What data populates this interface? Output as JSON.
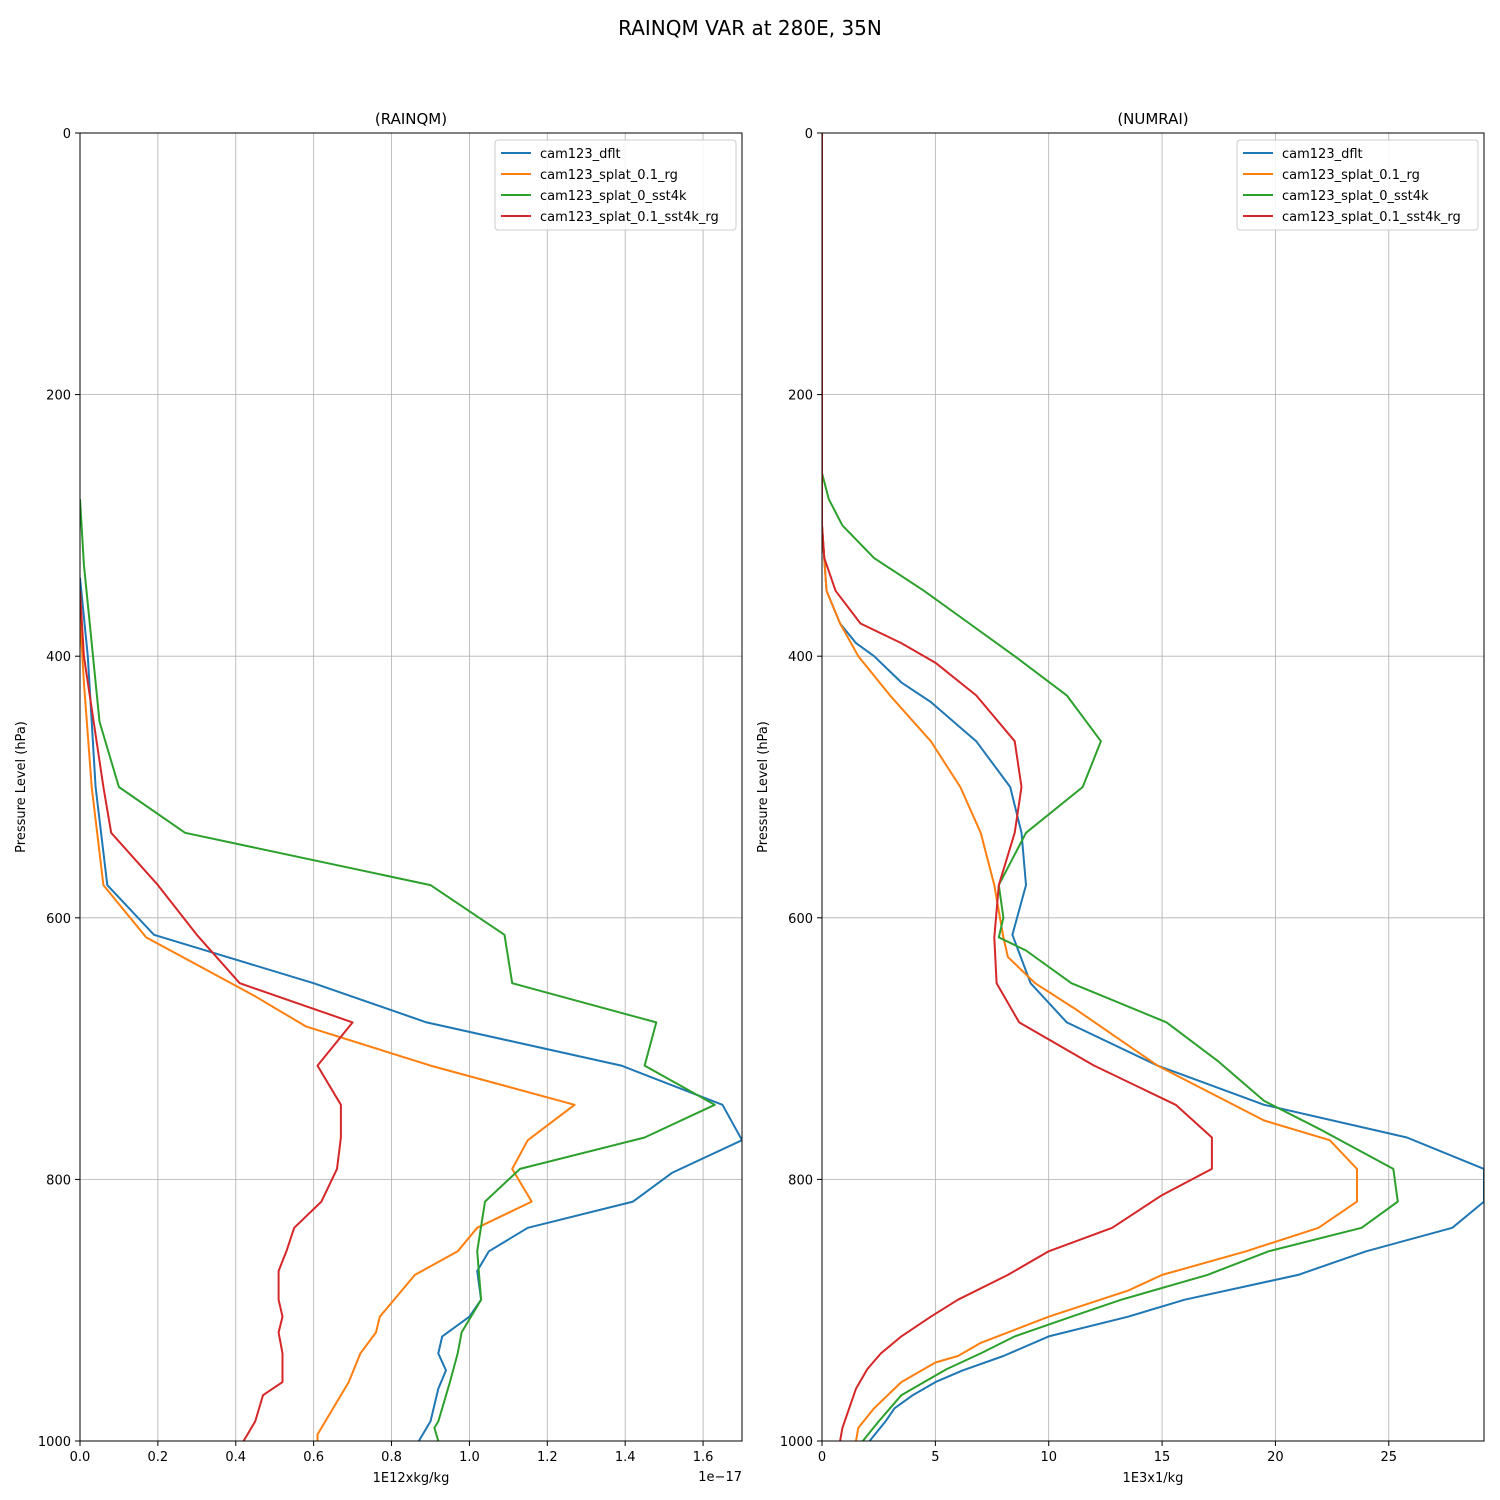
{
  "suptitle": "RAINQM VAR at 280E, 35N",
  "colors": {
    "cam123_dflt": "#1f77b4",
    "cam123_splat_0.1_rg": "#ff7f0e",
    "cam123_splat_0_sst4k": "#2ca02c",
    "cam123_splat_0.1_sst4k_rg": "#d62728",
    "grid": "#b0b0b0"
  },
  "chart_data": [
    {
      "type": "line",
      "title": "(RAINQM)",
      "xlabel": "1E12xkg/kg",
      "ylabel": "Pressure Level (hPa)",
      "x_offset_label": "1e−17",
      "xlim": [
        0,
        1.7
      ],
      "ylim": [
        1000,
        0
      ],
      "xticks": [
        0.0,
        0.2,
        0.4,
        0.6,
        0.8,
        1.0,
        1.2,
        1.4,
        1.6
      ],
      "xtick_labels": [
        "0.0",
        "0.2",
        "0.4",
        "0.6",
        "0.8",
        "1.0",
        "1.2",
        "1.4",
        "1.6"
      ],
      "yticks": [
        0,
        200,
        400,
        600,
        800,
        1000
      ],
      "ytick_labels": [
        "0",
        "200",
        "400",
        "600",
        "800",
        "1000"
      ],
      "grid": true,
      "legend_position": "top-right",
      "series": [
        {
          "name": "cam123_dflt",
          "points": [
            [
              0,
              340
            ],
            [
              0.02,
              400
            ],
            [
              0.04,
              500
            ],
            [
              0.07,
              575
            ],
            [
              0.19,
              613
            ],
            [
              0.6,
              650
            ],
            [
              0.89,
              680
            ],
            [
              1.39,
              713
            ],
            [
              1.65,
              743
            ],
            [
              1.7,
              770
            ],
            [
              1.52,
              795
            ],
            [
              1.42,
              817
            ],
            [
              1.15,
              837
            ],
            [
              1.05,
              855
            ],
            [
              1.02,
              870
            ],
            [
              1.03,
              892
            ],
            [
              1.0,
              905
            ],
            [
              0.93,
              920
            ],
            [
              0.92,
              933
            ],
            [
              0.94,
              946
            ],
            [
              0.92,
              960
            ],
            [
              0.9,
              985
            ],
            [
              0.87,
              1000
            ]
          ]
        },
        {
          "name": "cam123_splat_0.1_rg",
          "points": [
            [
              0,
              370
            ],
            [
              0.01,
              420
            ],
            [
              0.03,
              500
            ],
            [
              0.06,
              575
            ],
            [
              0.17,
              615
            ],
            [
              0.45,
              660
            ],
            [
              0.58,
              683
            ],
            [
              0.9,
              713
            ],
            [
              1.27,
              743
            ],
            [
              1.15,
              770
            ],
            [
              1.11,
              792
            ],
            [
              1.16,
              817
            ],
            [
              1.02,
              837
            ],
            [
              0.97,
              855
            ],
            [
              0.86,
              873
            ],
            [
              0.77,
              905
            ],
            [
              0.76,
              917
            ],
            [
              0.72,
              933
            ],
            [
              0.69,
              955
            ],
            [
              0.63,
              985
            ],
            [
              0.61,
              995
            ],
            [
              0.61,
              1000
            ]
          ]
        },
        {
          "name": "cam123_splat_0_sst4k",
          "points": [
            [
              0,
              280
            ],
            [
              0.01,
              330
            ],
            [
              0.05,
              450
            ],
            [
              0.1,
              500
            ],
            [
              0.27,
              535
            ],
            [
              0.9,
              575
            ],
            [
              1.09,
              613
            ],
            [
              1.11,
              650
            ],
            [
              1.48,
              680
            ],
            [
              1.45,
              713
            ],
            [
              1.63,
              743
            ],
            [
              1.45,
              768
            ],
            [
              1.13,
              792
            ],
            [
              1.04,
              817
            ],
            [
              1.02,
              855
            ],
            [
              1.03,
              892
            ],
            [
              0.98,
              917
            ],
            [
              0.97,
              933
            ],
            [
              0.95,
              955
            ],
            [
              0.93,
              975
            ],
            [
              0.92,
              985
            ],
            [
              0.91,
              990
            ],
            [
              0.92,
              1000
            ]
          ]
        },
        {
          "name": "cam123_splat_0.1_sst4k_rg",
          "points": [
            [
              0,
              350
            ],
            [
              0.01,
              400
            ],
            [
              0.06,
              500
            ],
            [
              0.08,
              535
            ],
            [
              0.2,
              575
            ],
            [
              0.3,
              613
            ],
            [
              0.41,
              650
            ],
            [
              0.7,
              680
            ],
            [
              0.61,
              713
            ],
            [
              0.67,
              743
            ],
            [
              0.67,
              768
            ],
            [
              0.66,
              792
            ],
            [
              0.62,
              817
            ],
            [
              0.55,
              837
            ],
            [
              0.53,
              855
            ],
            [
              0.51,
              870
            ],
            [
              0.51,
              892
            ],
            [
              0.52,
              905
            ],
            [
              0.51,
              917
            ],
            [
              0.52,
              933
            ],
            [
              0.52,
              955
            ],
            [
              0.47,
              965
            ],
            [
              0.45,
              985
            ],
            [
              0.42,
              1000
            ]
          ]
        }
      ]
    },
    {
      "type": "line",
      "title": "(NUMRAI)",
      "xlabel": "1E3x1/kg",
      "ylabel": "Pressure Level (hPa)",
      "xlim": [
        0,
        29.2
      ],
      "ylim": [
        1000,
        0
      ],
      "xticks": [
        0,
        5,
        10,
        15,
        20,
        25
      ],
      "xtick_labels": [
        "0",
        "5",
        "10",
        "15",
        "20",
        "25"
      ],
      "yticks": [
        0,
        200,
        400,
        600,
        800,
        1000
      ],
      "ytick_labels": [
        "0",
        "200",
        "400",
        "600",
        "800",
        "1000"
      ],
      "grid": true,
      "legend_position": "top-right",
      "series": [
        {
          "name": "cam123_dflt",
          "points": [
            [
              0,
              0
            ],
            [
              0,
              300
            ],
            [
              0.2,
              350
            ],
            [
              0.8,
              375
            ],
            [
              1.5,
              390
            ],
            [
              2.3,
              400
            ],
            [
              3.5,
              420
            ],
            [
              4.8,
              435
            ],
            [
              6.8,
              465
            ],
            [
              8.3,
              500
            ],
            [
              8.8,
              535
            ],
            [
              9,
              575
            ],
            [
              8.4,
              613
            ],
            [
              9.2,
              650
            ],
            [
              10.8,
              680
            ],
            [
              14.8,
              713
            ],
            [
              19.5,
              743
            ],
            [
              25.8,
              768
            ],
            [
              29.2,
              792
            ],
            [
              29.2,
              817
            ],
            [
              27.8,
              837
            ],
            [
              24,
              855
            ],
            [
              21,
              873
            ],
            [
              16,
              892
            ],
            [
              13.5,
              905
            ],
            [
              10,
              920
            ],
            [
              8,
              935
            ],
            [
              6.2,
              946
            ],
            [
              5,
              955
            ],
            [
              4,
              965
            ],
            [
              3.2,
              975
            ],
            [
              2.8,
              985
            ],
            [
              2.1,
              1000
            ]
          ]
        },
        {
          "name": "cam123_splat_0.1_rg",
          "points": [
            [
              0,
              0
            ],
            [
              0,
              300
            ],
            [
              0.2,
              350
            ],
            [
              0.8,
              375
            ],
            [
              1.6,
              400
            ],
            [
              3,
              430
            ],
            [
              4.8,
              465
            ],
            [
              6.1,
              500
            ],
            [
              7,
              535
            ],
            [
              7.6,
              575
            ],
            [
              8,
              615
            ],
            [
              8.2,
              630
            ],
            [
              9.4,
              650
            ],
            [
              11.2,
              670
            ],
            [
              14.8,
              713
            ],
            [
              19.5,
              755
            ],
            [
              22.4,
              770
            ],
            [
              23.6,
              792
            ],
            [
              23.6,
              817
            ],
            [
              21.9,
              837
            ],
            [
              18.7,
              855
            ],
            [
              15,
              873
            ],
            [
              13.5,
              885
            ],
            [
              10,
              905
            ],
            [
              8.5,
              915
            ],
            [
              7,
              925
            ],
            [
              6,
              935
            ],
            [
              5,
              940
            ],
            [
              4.2,
              948
            ],
            [
              3.5,
              955
            ],
            [
              2.9,
              965
            ],
            [
              2.3,
              975
            ],
            [
              1.6,
              990
            ],
            [
              1.5,
              1000
            ]
          ]
        },
        {
          "name": "cam123_splat_0_sst4k",
          "points": [
            [
              0,
              0
            ],
            [
              0,
              260
            ],
            [
              0.3,
              280
            ],
            [
              0.9,
              300
            ],
            [
              2.3,
              325
            ],
            [
              4.5,
              350
            ],
            [
              6.5,
              375
            ],
            [
              8.5,
              400
            ],
            [
              10.8,
              430
            ],
            [
              12.3,
              465
            ],
            [
              11.5,
              500
            ],
            [
              9,
              535
            ],
            [
              7.8,
              575
            ],
            [
              8,
              600
            ],
            [
              7.8,
              615
            ],
            [
              9,
              625
            ],
            [
              11,
              650
            ],
            [
              15.2,
              680
            ],
            [
              17.5,
              710
            ],
            [
              19.5,
              740
            ],
            [
              22,
              762
            ],
            [
              25.2,
              792
            ],
            [
              25.4,
              817
            ],
            [
              23.8,
              837
            ],
            [
              19.7,
              855
            ],
            [
              17,
              873
            ],
            [
              13.2,
              892
            ],
            [
              11,
              905
            ],
            [
              8.5,
              920
            ],
            [
              7,
              933
            ],
            [
              5.5,
              945
            ],
            [
              4.5,
              955
            ],
            [
              3.5,
              965
            ],
            [
              2.5,
              985
            ],
            [
              1.8,
              1000
            ]
          ]
        },
        {
          "name": "cam123_splat_0.1_sst4k_rg",
          "points": [
            [
              0,
              0
            ],
            [
              0,
              300
            ],
            [
              0.1,
              325
            ],
            [
              0.6,
              350
            ],
            [
              1.7,
              375
            ],
            [
              3.5,
              390
            ],
            [
              5,
              405
            ],
            [
              6.8,
              430
            ],
            [
              8.5,
              465
            ],
            [
              8.8,
              500
            ],
            [
              8.5,
              535
            ],
            [
              7.8,
              575
            ],
            [
              7.6,
              615
            ],
            [
              7.7,
              650
            ],
            [
              8.7,
              680
            ],
            [
              12,
              713
            ],
            [
              15.6,
              743
            ],
            [
              17.2,
              768
            ],
            [
              17.2,
              792
            ],
            [
              15,
              812
            ],
            [
              12.8,
              837
            ],
            [
              10,
              855
            ],
            [
              8.2,
              873
            ],
            [
              6,
              892
            ],
            [
              4.8,
              905
            ],
            [
              3.5,
              920
            ],
            [
              2.6,
              933
            ],
            [
              2,
              945
            ],
            [
              1.5,
              960
            ],
            [
              1.2,
              975
            ],
            [
              0.9,
              990
            ],
            [
              0.8,
              1000
            ]
          ]
        }
      ]
    }
  ]
}
